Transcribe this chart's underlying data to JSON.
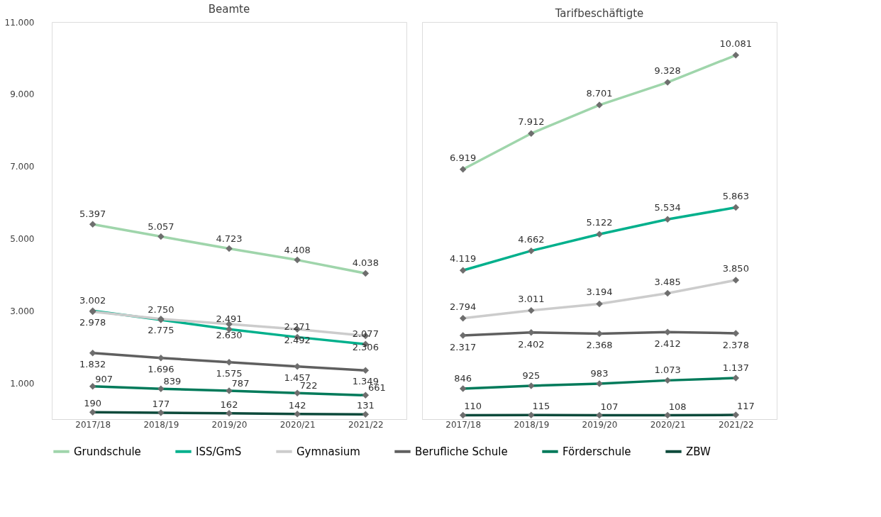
{
  "chart_data": [
    {
      "type": "line",
      "title": "Beamte",
      "categories": [
        "2017/18",
        "2018/19",
        "2019/20",
        "2020/21",
        "2021/22"
      ],
      "ylim": [
        0,
        11000
      ],
      "yticks": [
        {
          "value": 1000,
          "label": "1.000"
        },
        {
          "value": 3000,
          "label": "3.000"
        },
        {
          "value": 5000,
          "label": "5.000"
        },
        {
          "value": 7000,
          "label": "7.000"
        },
        {
          "value": 9000,
          "label": "9.000"
        },
        {
          "value": 11000,
          "label": "11.000"
        }
      ],
      "grid": false,
      "legend": "bottom",
      "marker": "diamond",
      "line_style": "solid",
      "series": [
        {
          "name": "Grundschule",
          "color": "#9fd5ab",
          "values": [
            5397,
            5057,
            4723,
            4408,
            4038
          ],
          "value_labels": [
            "5.397",
            "5.057",
            "4.723",
            "4.408",
            "4.038"
          ]
        },
        {
          "name": "ISS/GmS",
          "color": "#00b08c",
          "values": [
            3002,
            2750,
            2491,
            2271,
            2077
          ],
          "value_labels": [
            "3.002",
            "2.750",
            "2.491",
            "2.271",
            "2.077"
          ]
        },
        {
          "name": "Gymnasium",
          "color": "#cccccc",
          "values": [
            2978,
            2775,
            2630,
            2492,
            2306
          ],
          "value_labels": [
            "2.978",
            "2.775",
            "2.630",
            "2.492",
            "2.306"
          ]
        },
        {
          "name": "Berufliche Schule",
          "color": "#5f5f5f",
          "values": [
            1832,
            1696,
            1575,
            1457,
            1349
          ],
          "value_labels": [
            "1.832",
            "1.696",
            "1.575",
            "1.457",
            "1.349"
          ]
        },
        {
          "name": "Förderschule",
          "color": "#007a5a",
          "values": [
            907,
            839,
            787,
            722,
            661
          ],
          "value_labels": [
            "907",
            "839",
            "787",
            "722",
            "661"
          ]
        },
        {
          "name": "ZBW",
          "color": "#0d4a3b",
          "values": [
            190,
            177,
            162,
            142,
            131
          ],
          "value_labels": [
            "190",
            "177",
            "162",
            "142",
            "131"
          ]
        }
      ]
    },
    {
      "type": "line",
      "title": "Tarifbeschäftigte",
      "categories": [
        "2017/18",
        "2018/19",
        "2019/20",
        "2020/21",
        "2021/22"
      ],
      "ylim": [
        0,
        11000
      ],
      "tick_labels": "x",
      "grid": false,
      "marker": "diamond",
      "line_style": "solid",
      "series": [
        {
          "name": "Grundschule",
          "color": "#9fd5ab",
          "values": [
            6919,
            7912,
            8701,
            9328,
            10081
          ],
          "value_labels": [
            "6.919",
            "7.912",
            "8.701",
            "9.328",
            "10.081"
          ]
        },
        {
          "name": "ISS/GmS",
          "color": "#00b08c",
          "values": [
            4119,
            4662,
            5122,
            5534,
            5863
          ],
          "value_labels": [
            "4.119",
            "4.662",
            "5.122",
            "5.534",
            "5.863"
          ]
        },
        {
          "name": "Gymnasium",
          "color": "#cccccc",
          "values": [
            2794,
            3011,
            3194,
            3485,
            3850
          ],
          "value_labels": [
            "2.794",
            "3.011",
            "3.194",
            "3.485",
            "3.850"
          ]
        },
        {
          "name": "Berufliche Schule",
          "color": "#5f5f5f",
          "values": [
            2317,
            2402,
            2368,
            2412,
            2378
          ],
          "value_labels": [
            "2.317",
            "2.402",
            "2.368",
            "2.412",
            "2.378"
          ]
        },
        {
          "name": "Förderschule",
          "color": "#007a5a",
          "values": [
            846,
            925,
            983,
            1073,
            1137
          ],
          "value_labels": [
            "846",
            "925",
            "983",
            "1.073",
            "1.137"
          ]
        },
        {
          "name": "ZBW",
          "color": "#0d4a3b",
          "values": [
            110,
            115,
            107,
            108,
            117
          ],
          "value_labels": [
            "110",
            "115",
            "107",
            "108",
            "117"
          ]
        }
      ]
    }
  ]
}
